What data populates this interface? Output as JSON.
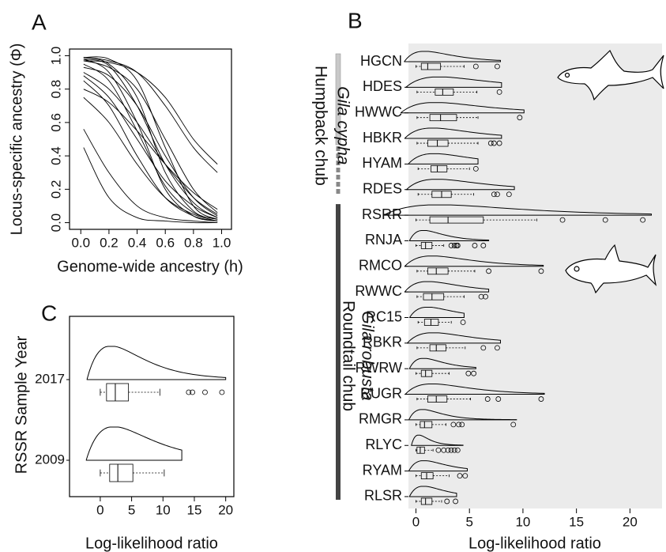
{
  "chart_data": [
    {
      "type": "line",
      "panel_label": "A",
      "x_label": "Genome-wide ancestry (h)",
      "y_label": "Locus-specific ancestry (Φ)",
      "x": [
        0.02,
        0.2,
        0.4,
        0.6,
        0.8,
        0.97
      ],
      "series": [
        {
          "values": [
            0.99,
            0.95,
            0.75,
            0.3,
            0.07,
            0.02
          ]
        },
        {
          "values": [
            0.98,
            0.9,
            0.6,
            0.2,
            0.04,
            0.01
          ]
        },
        {
          "values": [
            0.97,
            0.93,
            0.8,
            0.5,
            0.2,
            0.06
          ]
        },
        {
          "values": [
            0.95,
            0.85,
            0.55,
            0.22,
            0.06,
            0.02
          ]
        },
        {
          "values": [
            0.9,
            0.8,
            0.6,
            0.35,
            0.15,
            0.05
          ]
        },
        {
          "values": [
            0.99,
            0.97,
            0.9,
            0.7,
            0.45,
            0.3
          ]
        },
        {
          "values": [
            0.97,
            0.96,
            0.9,
            0.75,
            0.5,
            0.35
          ]
        },
        {
          "values": [
            0.85,
            0.7,
            0.4,
            0.15,
            0.04,
            0.01
          ]
        },
        {
          "values": [
            0.75,
            0.6,
            0.35,
            0.15,
            0.05,
            0.01
          ]
        },
        {
          "values": [
            0.56,
            0.3,
            0.1,
            0.03,
            0.01,
            0
          ]
        },
        {
          "values": [
            0.45,
            0.15,
            0.03,
            0.01,
            0,
            0
          ]
        },
        {
          "values": [
            0.93,
            0.88,
            0.7,
            0.4,
            0.15,
            0.04
          ]
        },
        {
          "values": [
            0.99,
            0.98,
            0.85,
            0.45,
            0.1,
            0.02
          ]
        },
        {
          "values": [
            0.88,
            0.75,
            0.5,
            0.25,
            0.1,
            0.03
          ]
        },
        {
          "values": [
            0.8,
            0.72,
            0.55,
            0.35,
            0.18,
            0.08
          ]
        },
        {
          "values": [
            0.98,
            0.94,
            0.7,
            0.35,
            0.12,
            0.03
          ]
        }
      ],
      "color": "#000000",
      "xlim": [
        -0.08,
        1.07
      ],
      "ylim": [
        -0.04,
        1.04
      ],
      "xticks": [
        {
          "value": 0,
          "label": "0.0"
        },
        0.2,
        0.4,
        0.6,
        0.8,
        {
          "value": 1,
          "label": "1.0"
        }
      ],
      "yticks": [
        {
          "value": 0,
          "label": "0.0"
        },
        0.2,
        0.4,
        0.6,
        0.8,
        {
          "value": 1,
          "label": "1.0"
        }
      ]
    },
    {
      "type": "violin-box",
      "panel_label": "B",
      "x_label": "Log-likelihood ratio",
      "groups": [
        {
          "name": "Humpback chub",
          "species": "Gila cypha"
        },
        {
          "name": "Roundtail chub",
          "species": "Gila robusta"
        }
      ],
      "categories": [
        "HGCN",
        "HDES",
        "HWWC",
        "HBKR",
        "HYAM",
        "RDES",
        "RSRR",
        "RNJA",
        "RMCO",
        "RWWC",
        "RC15",
        "RBKR",
        "RWRW",
        "RUGR",
        "RMGR",
        "RLYC",
        "RYAM",
        "RLSR"
      ],
      "boxes": [
        {
          "whislo": 0,
          "q1": 0.5,
          "med": 1.1,
          "q3": 2.3,
          "whishi": 4.5,
          "fliers": [
            5.6,
            7.6
          ],
          "max": 7.9
        },
        {
          "whislo": 0.1,
          "q1": 1.8,
          "med": 2.5,
          "q3": 3.5,
          "whishi": 5.7,
          "fliers": [
            7.8
          ],
          "max": 8.0
        },
        {
          "whislo": 0.1,
          "q1": 1.3,
          "med": 2.3,
          "q3": 3.8,
          "whishi": 5.8,
          "fliers": [
            9.7
          ],
          "max": 10.1
        },
        {
          "whislo": 0.1,
          "q1": 1.1,
          "med": 2.0,
          "q3": 3.0,
          "whishi": 5.8,
          "fliers": [
            7.0,
            7.3,
            7.8
          ],
          "max": 8.0
        },
        {
          "whislo": 0.2,
          "q1": 1.4,
          "med": 2.0,
          "q3": 2.9,
          "whishi": 5.0,
          "fliers": [
            5.6
          ],
          "max": 5.8
        },
        {
          "whislo": 0.2,
          "q1": 1.5,
          "med": 2.4,
          "q3": 3.3,
          "whishi": 5.4,
          "fliers": [
            7.3,
            7.6,
            8.7
          ],
          "max": 9.2
        },
        {
          "whislo": 0,
          "q1": 1.3,
          "med": 3.0,
          "q3": 6.3,
          "whishi": 11.3,
          "fliers": [
            13.7,
            17.7,
            21.2
          ],
          "max": 22.0
        },
        {
          "whislo": 0,
          "q1": 0.5,
          "med": 0.9,
          "q3": 1.5,
          "whishi": 2.6,
          "fliers": [
            3.3,
            3.6,
            3.8,
            3.9,
            5.5,
            6.3
          ],
          "max": 6.8
        },
        {
          "whislo": 0.1,
          "q1": 1.1,
          "med": 1.9,
          "q3": 3.0,
          "whishi": 5.5,
          "fliers": [
            6.8,
            11.7
          ],
          "max": 11.9
        },
        {
          "whislo": 0.1,
          "q1": 0.7,
          "med": 1.5,
          "q3": 2.6,
          "whishi": 4.5,
          "fliers": [
            6.1,
            6.5
          ],
          "max": 6.8
        },
        {
          "whislo": 0.2,
          "q1": 0.8,
          "med": 1.4,
          "q3": 2.1,
          "whishi": 3.3,
          "fliers": [
            4.4
          ],
          "max": 4.5
        },
        {
          "whislo": 0.1,
          "q1": 1.3,
          "med": 1.9,
          "q3": 2.8,
          "whishi": 4.6,
          "fliers": [
            6.3,
            7.6
          ],
          "max": 7.9
        },
        {
          "whislo": 0,
          "q1": 0.5,
          "med": 0.9,
          "q3": 1.5,
          "whishi": 3.1,
          "fliers": [
            4.9,
            5.4
          ],
          "max": 5.6
        },
        {
          "whislo": 0.1,
          "q1": 1.1,
          "med": 1.9,
          "q3": 2.9,
          "whishi": 5.1,
          "fliers": [
            6.7,
            7.7,
            11.7
          ],
          "max": 12.0
        },
        {
          "whislo": 0,
          "q1": 0.4,
          "med": 0.8,
          "q3": 1.5,
          "whishi": 2.8,
          "fliers": [
            3.5,
            4.0,
            4.3,
            9.1
          ],
          "max": 9.4
        },
        {
          "whislo": 0,
          "q1": 0.1,
          "med": 0.4,
          "q3": 0.8,
          "whishi": 1.6,
          "fliers": [
            2.1,
            2.6,
            3.0,
            3.3,
            3.6,
            3.9
          ],
          "max": 4.4
        },
        {
          "whislo": 0,
          "q1": 0.5,
          "med": 1.0,
          "q3": 1.6,
          "whishi": 3.1,
          "fliers": [
            4.1,
            4.6
          ],
          "max": 4.8
        },
        {
          "whislo": 0,
          "q1": 0.5,
          "med": 0.9,
          "q3": 1.5,
          "whishi": 2.4,
          "fliers": [
            2.9,
            3.7
          ],
          "max": 3.8
        }
      ],
      "xlim": [
        -0.7,
        23.0
      ],
      "xticks": [
        0,
        5,
        10,
        15,
        20
      ]
    },
    {
      "type": "violin-box",
      "panel_label": "C",
      "x_label": "Log-likelihood ratio",
      "y_label": "RSSR Sample Year",
      "categories": [
        "2017",
        "2009"
      ],
      "boxes": [
        {
          "whislo": 0,
          "q1": 1.0,
          "med": 2.4,
          "q3": 4.5,
          "whishi": 9.5,
          "fliers": [
            14.1,
            14.7,
            16.7,
            19.4
          ],
          "max": 20.0
        },
        {
          "whislo": 0,
          "q1": 1.5,
          "med": 2.8,
          "q3": 5.2,
          "whishi": 10.2,
          "fliers": [],
          "max": 13.0
        }
      ],
      "xlim": [
        -4.9,
        21.3
      ],
      "xticks": [
        0,
        5,
        10,
        15,
        20
      ]
    }
  ]
}
